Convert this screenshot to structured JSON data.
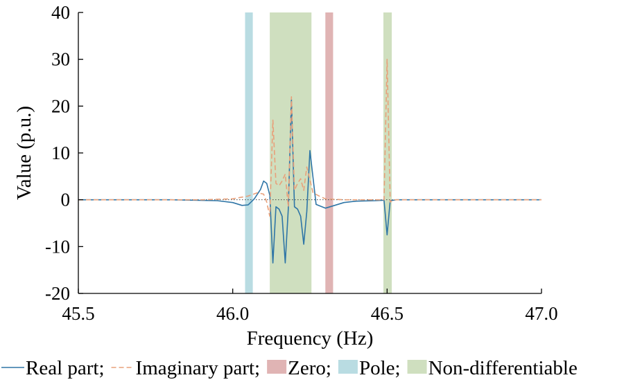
{
  "chart_data": {
    "type": "line",
    "title": "",
    "xlabel": "Frequency (Hz)",
    "ylabel": "Value (p.u.)",
    "xlim": [
      45.5,
      47.0
    ],
    "ylim": [
      -20,
      40
    ],
    "xticks": [
      45.5,
      46.0,
      46.5,
      47.0
    ],
    "xtick_labels": [
      "45.5",
      "46.0",
      "46.5",
      "47.0"
    ],
    "yticks": [
      -20,
      -10,
      0,
      10,
      20,
      30,
      40
    ],
    "ytick_labels": [
      "-20",
      "-10",
      "0",
      "10",
      "20",
      "30",
      "40"
    ],
    "grid": false,
    "legend_position": "bottom",
    "zero_reference_line": true,
    "series": [
      {
        "name": "Real part",
        "style": "solid",
        "color": "#2e75a6",
        "x": [
          45.5,
          45.8,
          45.95,
          46.0,
          46.03,
          46.05,
          46.07,
          46.09,
          46.1,
          46.11,
          46.12,
          46.13,
          46.14,
          46.15,
          46.16,
          46.17,
          46.18,
          46.19,
          46.2,
          46.21,
          46.22,
          46.23,
          46.24,
          46.25,
          46.27,
          46.3,
          46.33,
          46.36,
          46.4,
          46.46,
          46.49,
          46.5,
          46.51,
          46.53,
          46.6,
          47.0
        ],
        "y": [
          0,
          0,
          -0.2,
          -0.6,
          -1.2,
          -1.1,
          0.2,
          2.2,
          4.0,
          3.5,
          1.0,
          -13.5,
          -1.5,
          -2.0,
          -3.5,
          -13.5,
          -2.0,
          21.5,
          -1.5,
          -2.0,
          -3.5,
          -9.5,
          -2.5,
          10.5,
          -1.0,
          -1.8,
          -1.2,
          -0.6,
          -0.3,
          -0.2,
          -0.1,
          -7.5,
          -0.2,
          0,
          0,
          0
        ]
      },
      {
        "name": "Imaginary part",
        "style": "dashed",
        "color": "#e8a07a",
        "x": [
          45.5,
          45.9,
          46.0,
          46.05,
          46.08,
          46.1,
          46.11,
          46.12,
          46.13,
          46.14,
          46.15,
          46.16,
          46.17,
          46.18,
          46.19,
          46.2,
          46.21,
          46.22,
          46.23,
          46.24,
          46.26,
          46.28,
          46.3,
          46.33,
          46.36,
          46.4,
          46.48,
          46.49,
          46.5,
          46.51,
          46.52,
          46.6,
          47.0
        ],
        "y": [
          0,
          0,
          0.2,
          0.8,
          1.5,
          1.2,
          -0.5,
          -3.5,
          17.0,
          3.5,
          3.0,
          4.0,
          5.5,
          -1.5,
          22.0,
          2.0,
          3.5,
          4.5,
          2.0,
          7.0,
          1.5,
          0.8,
          0.2,
          0.1,
          0,
          0,
          0,
          0,
          30.0,
          -0.5,
          0,
          0,
          0
        ]
      }
    ],
    "shaded_regions": [
      {
        "name": "Zero",
        "color": "#e0b4b4",
        "x": [
          46.3,
          46.325
        ]
      },
      {
        "name": "Pole",
        "color": "#b9dce2",
        "x": [
          46.04,
          46.065
        ]
      },
      {
        "name": "Non-differentiable",
        "color": "#cfdfbf",
        "x": [
          46.12,
          46.255
        ]
      },
      {
        "name": "Non-differentiable",
        "color": "#cfdfbf",
        "x": [
          46.488,
          46.515
        ]
      }
    ],
    "legend": [
      {
        "label": "Real part;",
        "kind": "solid",
        "color": "#2e75a6"
      },
      {
        "label": "Imaginary part;",
        "kind": "dashed",
        "color": "#e8a07a"
      },
      {
        "label": "Zero;",
        "kind": "box",
        "color": "#e0b4b4"
      },
      {
        "label": "Pole;",
        "kind": "box",
        "color": "#b9dce2"
      },
      {
        "label": "Non-differentiable",
        "kind": "box",
        "color": "#cfdfbf"
      }
    ]
  }
}
